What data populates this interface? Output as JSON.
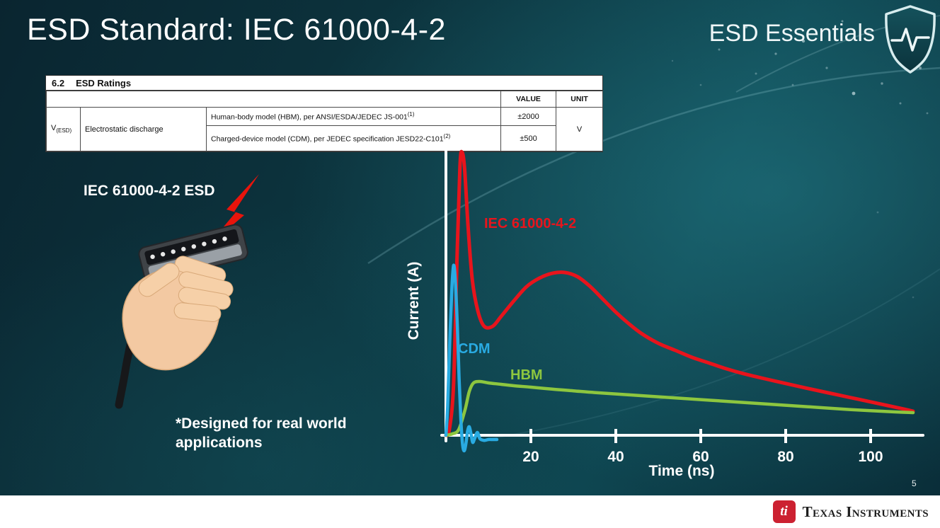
{
  "slide": {
    "title": "ESD Standard: IEC 61000-4-2",
    "series_label": "ESD Essentials",
    "page_number": "5",
    "illustration_label": "IEC 61000-4-2 ESD",
    "note_line1": "*Designed for real world",
    "note_line2": "applications"
  },
  "ratings_table": {
    "section": "6.2",
    "section_title": "ESD Ratings",
    "col_value": "VALUE",
    "col_unit": "UNIT",
    "param_symbol": "V",
    "param_symbol_sub": "(ESD)",
    "param_name": "Electrostatic discharge",
    "rows": [
      {
        "description": "Human-body model (HBM), per ANSI/ESDA/JEDEC JS-001",
        "ref": "(1)",
        "value": "±2000"
      },
      {
        "description": "Charged-device model (CDM), per JEDEC specification JESD22-C101",
        "ref": "(2)",
        "value": "±500"
      }
    ],
    "unit": "V"
  },
  "chart_data": {
    "type": "line",
    "title": "",
    "xlabel": "Time (ns)",
    "ylabel": "Current (A)",
    "x_ticks": [
      20,
      40,
      60,
      80,
      100
    ],
    "xlim": [
      0,
      110
    ],
    "y_ticks": [],
    "y_scale": "normalized amplitude 0-1 (no y tick values shown)",
    "grid": false,
    "legend": "inline curve labels",
    "series": [
      {
        "name": "IEC 61000-4-2",
        "color": "#e8141c",
        "points": [
          [
            0,
            0
          ],
          [
            0.8,
            0.02
          ],
          [
            1.8,
            0.18
          ],
          [
            2.6,
            0.62
          ],
          [
            3.3,
            0.95
          ],
          [
            3.8,
            1.0
          ],
          [
            4.4,
            0.94
          ],
          [
            5.2,
            0.74
          ],
          [
            6.2,
            0.55
          ],
          [
            7.5,
            0.44
          ],
          [
            9,
            0.385
          ],
          [
            11,
            0.385
          ],
          [
            13,
            0.42
          ],
          [
            16,
            0.475
          ],
          [
            19,
            0.525
          ],
          [
            22,
            0.555
          ],
          [
            25,
            0.572
          ],
          [
            28,
            0.575
          ],
          [
            31,
            0.56
          ],
          [
            34,
            0.525
          ],
          [
            37,
            0.48
          ],
          [
            40,
            0.435
          ],
          [
            43,
            0.395
          ],
          [
            46,
            0.36
          ],
          [
            50,
            0.325
          ],
          [
            54,
            0.3
          ],
          [
            58,
            0.275
          ],
          [
            62,
            0.255
          ],
          [
            66,
            0.235
          ],
          [
            70,
            0.218
          ],
          [
            75,
            0.2
          ],
          [
            80,
            0.183
          ],
          [
            85,
            0.166
          ],
          [
            90,
            0.15
          ],
          [
            95,
            0.134
          ],
          [
            100,
            0.118
          ],
          [
            104,
            0.105
          ],
          [
            108,
            0.092
          ],
          [
            110,
            0.085
          ]
        ]
      },
      {
        "name": "CDM",
        "color": "#29abe2",
        "points": [
          [
            0,
            0
          ],
          [
            0.4,
            0.1
          ],
          [
            0.9,
            0.33
          ],
          [
            1.4,
            0.52
          ],
          [
            1.8,
            0.6
          ],
          [
            2.2,
            0.55
          ],
          [
            2.7,
            0.38
          ],
          [
            3.1,
            0.2
          ],
          [
            3.5,
            0.06
          ],
          [
            3.9,
            -0.03
          ],
          [
            4.3,
            -0.055
          ],
          [
            4.7,
            -0.03
          ],
          [
            5.1,
            0.015
          ],
          [
            5.5,
            0.03
          ],
          [
            5.9,
            0.005
          ],
          [
            6.3,
            -0.025
          ],
          [
            6.8,
            -0.01
          ],
          [
            7.4,
            0.01
          ],
          [
            8,
            -0.012
          ],
          [
            9,
            -0.018
          ],
          [
            10,
            -0.015
          ],
          [
            11,
            -0.015
          ],
          [
            12,
            -0.015
          ]
        ]
      },
      {
        "name": "HBM",
        "color": "#8dc63f",
        "points": [
          [
            0,
            0
          ],
          [
            1.5,
            0.005
          ],
          [
            3,
            0.02
          ],
          [
            4.5,
            0.09
          ],
          [
            5.5,
            0.155
          ],
          [
            6.5,
            0.185
          ],
          [
            8,
            0.19
          ],
          [
            10,
            0.185
          ],
          [
            13,
            0.18
          ],
          [
            16,
            0.175
          ],
          [
            20,
            0.17
          ],
          [
            25,
            0.163
          ],
          [
            30,
            0.157
          ],
          [
            35,
            0.151
          ],
          [
            40,
            0.146
          ],
          [
            45,
            0.141
          ],
          [
            50,
            0.136
          ],
          [
            55,
            0.131
          ],
          [
            60,
            0.126
          ],
          [
            65,
            0.121
          ],
          [
            70,
            0.116
          ],
          [
            75,
            0.111
          ],
          [
            80,
            0.106
          ],
          [
            85,
            0.101
          ],
          [
            90,
            0.096
          ],
          [
            95,
            0.091
          ],
          [
            100,
            0.087
          ],
          [
            105,
            0.083
          ],
          [
            110,
            0.08
          ]
        ]
      }
    ]
  },
  "footer": {
    "brand": "Texas Instruments",
    "logo_monogram": "ti"
  }
}
